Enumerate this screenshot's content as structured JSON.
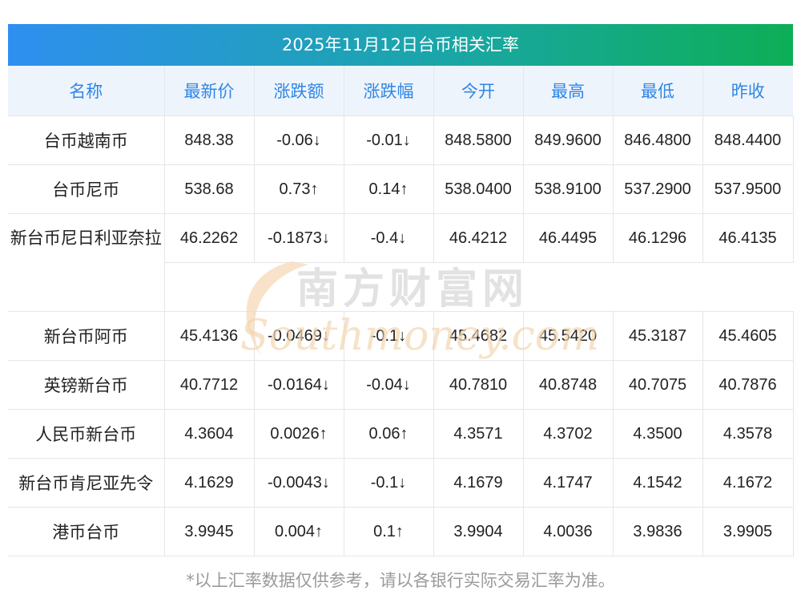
{
  "title": "2025年11月12日台币相关汇率",
  "columns": [
    "名称",
    "最新价",
    "涨跌额",
    "涨跌幅",
    "今开",
    "最高",
    "最低",
    "昨收"
  ],
  "rows": [
    {
      "name": "台币越南币",
      "latest": "848.38",
      "change": "-0.06↓",
      "pct": "-0.01↓",
      "open": "848.5800",
      "high": "849.9600",
      "low": "846.4800",
      "prev": "848.4400",
      "dir": "down"
    },
    {
      "name": "台币尼币",
      "latest": "538.68",
      "change": "0.73↑",
      "pct": "0.14↑",
      "open": "538.0400",
      "high": "538.9100",
      "low": "537.2900",
      "prev": "537.9500",
      "dir": "up"
    },
    {
      "name": "新台币尼日利亚奈拉",
      "latest": "46.2262",
      "change": "-0.1873↓",
      "pct": "-0.4↓",
      "open": "46.4212",
      "high": "46.4495",
      "low": "46.1296",
      "prev": "46.4135",
      "dir": "down"
    },
    {
      "name": "新台币阿币",
      "latest": "45.4136",
      "change": "-0.0469↓",
      "pct": "-0.1↓",
      "open": "45.4682",
      "high": "45.5420",
      "low": "45.3187",
      "prev": "45.4605",
      "dir": "down"
    },
    {
      "name": "英镑新台币",
      "latest": "40.7712",
      "change": "-0.0164↓",
      "pct": "-0.04↓",
      "open": "40.7810",
      "high": "40.8748",
      "low": "40.7075",
      "prev": "40.7876",
      "dir": "down"
    },
    {
      "name": "人民币新台币",
      "latest": "4.3604",
      "change": "0.0026↑",
      "pct": "0.06↑",
      "open": "4.3571",
      "high": "4.3702",
      "low": "4.3500",
      "prev": "4.3578",
      "dir": "up"
    },
    {
      "name": "新台币肯尼亚先令",
      "latest": "4.1629",
      "change": "-0.0043↓",
      "pct": "-0.1↓",
      "open": "4.1679",
      "high": "4.1747",
      "low": "4.1542",
      "prev": "4.1672",
      "dir": "down"
    },
    {
      "name": "港币台币",
      "latest": "3.9945",
      "change": "0.004↑",
      "pct": "0.1↑",
      "open": "3.9904",
      "high": "4.0036",
      "low": "3.9836",
      "prev": "3.9905",
      "dir": "up"
    }
  ],
  "watermark": {
    "brand": "南方财富网",
    "domain": "Southmoney.com"
  },
  "footer": "*以上汇率数据仅供参考，请以各银行实际交易汇率为准。",
  "colors": {
    "up": "#e8231e",
    "down": "#13891a",
    "header_text": "#2f86e6",
    "title_start": "#2f8ff0",
    "title_end": "#0dae56"
  }
}
